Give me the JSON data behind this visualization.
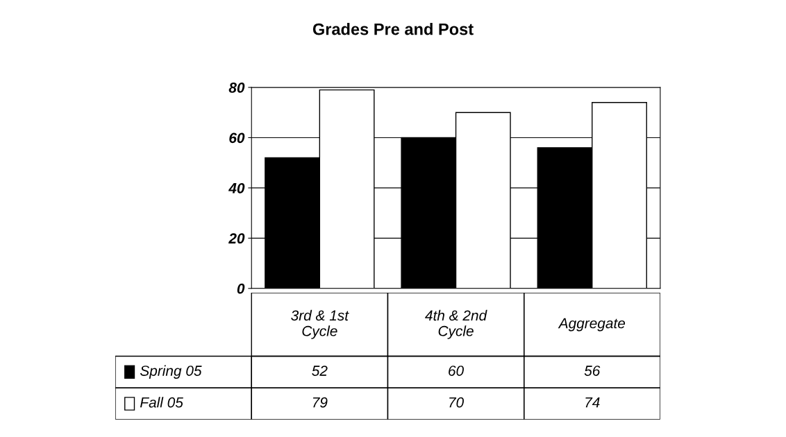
{
  "chart_data": {
    "type": "bar",
    "title": "Grades Pre and Post",
    "categories": [
      "3rd & 1st\nCycle",
      "4th & 2nd\nCycle",
      "Aggregate"
    ],
    "series": [
      {
        "name": "Spring 05",
        "color": "#000000",
        "values": [
          52,
          60,
          56
        ]
      },
      {
        "name": "Fall 05",
        "color": "#ffffff",
        "values": [
          79,
          70,
          74
        ]
      }
    ],
    "ylim": [
      0,
      80
    ],
    "yticks": [
      0,
      20,
      40,
      60,
      80
    ],
    "grid": "y",
    "legend": "bottom",
    "data_labels": true
  }
}
